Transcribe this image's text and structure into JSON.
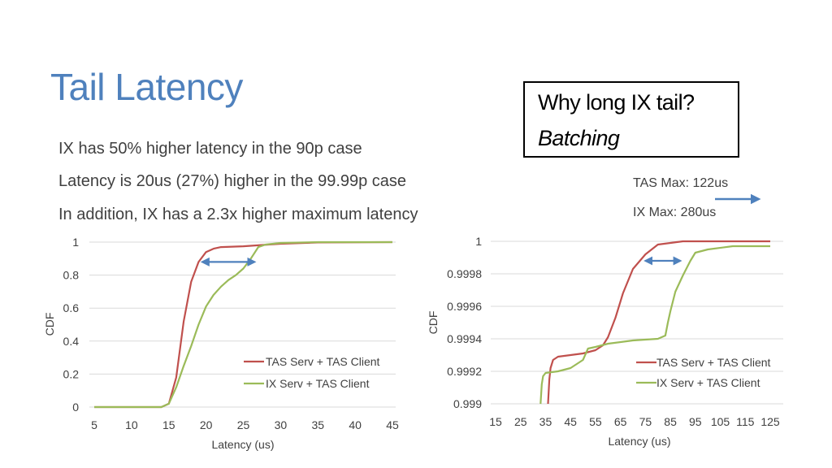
{
  "slide": {
    "title": "Tail Latency",
    "bullets": [
      "IX has 50% higher latency in the 90p case",
      "Latency is 20us (27%) higher in the 99.99p case",
      "In addition, IX has a 2.3x higher maximum latency"
    ],
    "callout": {
      "question": "Why long IX tail?",
      "answer": "Batching"
    },
    "notes": {
      "tas_max": "TAS Max: 122us",
      "ix_max": "IX Max: 280us"
    }
  },
  "colors": {
    "tas": "#c0504d",
    "ix": "#9bbb59",
    "arrow": "#4f81bd",
    "title": "#4f81bd",
    "grid": "#d9d9d9"
  },
  "chart_data": [
    {
      "type": "line",
      "title": "",
      "xlabel": "Latency (us)",
      "ylabel": "CDF",
      "xlim": [
        5,
        45
      ],
      "ylim": [
        0,
        1
      ],
      "xticks": [
        5,
        10,
        15,
        20,
        25,
        30,
        35,
        40,
        45
      ],
      "yticks": [
        0,
        0.2,
        0.4,
        0.6,
        0.8,
        1
      ],
      "ytick_labels": [
        "0",
        "0.2",
        "0.4",
        "0.6",
        "0.8",
        "1"
      ],
      "grid": true,
      "legend": "bottom-right",
      "series": [
        {
          "name": "TAS Serv + TAS Client",
          "color": "#c0504d",
          "x": [
            5,
            14,
            15,
            16,
            17,
            18,
            19,
            20,
            21,
            22,
            25,
            30,
            35,
            45
          ],
          "y": [
            0,
            0,
            0.02,
            0.18,
            0.52,
            0.76,
            0.88,
            0.94,
            0.96,
            0.97,
            0.975,
            0.99,
            0.998,
            1
          ]
        },
        {
          "name": "IX Serv + TAS Client",
          "color": "#9bbb59",
          "x": [
            5,
            14,
            15,
            16,
            17,
            18,
            19,
            20,
            21,
            22,
            23,
            24,
            25,
            26,
            27,
            28,
            29,
            30,
            35,
            45
          ],
          "y": [
            0,
            0,
            0.02,
            0.12,
            0.25,
            0.37,
            0.5,
            0.61,
            0.68,
            0.73,
            0.77,
            0.8,
            0.84,
            0.9,
            0.97,
            0.985,
            0.99,
            0.995,
            1,
            1
          ]
        }
      ],
      "annotations": [
        {
          "type": "double-arrow",
          "y": 0.88,
          "x_from": 19.5,
          "x_to": 26.5
        }
      ]
    },
    {
      "type": "line",
      "title": "",
      "xlabel": "Latency (us)",
      "ylabel": "CDF",
      "xlim": [
        15,
        125
      ],
      "ylim": [
        0.999,
        1
      ],
      "xticks": [
        15,
        25,
        35,
        45,
        55,
        65,
        75,
        85,
        95,
        105,
        115,
        125
      ],
      "yticks": [
        0.999,
        0.9992,
        0.9994,
        0.9996,
        0.9998,
        1
      ],
      "ytick_labels": [
        "0.999",
        "0.9992",
        "0.9994",
        "0.9996",
        "0.9998",
        "1"
      ],
      "grid": true,
      "legend": "bottom-right",
      "series": [
        {
          "name": "TAS Serv + TAS Client",
          "color": "#c0504d",
          "x": [
            36,
            36.5,
            37,
            38,
            40,
            45,
            50,
            55,
            58,
            60,
            63,
            66,
            70,
            75,
            80,
            85,
            90,
            100,
            125
          ],
          "y": [
            0.999,
            0.99915,
            0.99922,
            0.99927,
            0.99929,
            0.9993,
            0.99931,
            0.99933,
            0.99936,
            0.99941,
            0.99953,
            0.99968,
            0.99983,
            0.99992,
            0.99998,
            0.99999,
            1,
            1,
            1
          ]
        },
        {
          "name": "IX Serv + TAS Client",
          "color": "#9bbb59",
          "x": [
            33,
            33.5,
            34,
            35,
            40,
            45,
            48,
            50,
            52,
            55,
            60,
            70,
            80,
            83,
            84,
            85,
            87,
            90,
            93,
            95,
            100,
            110,
            125
          ],
          "y": [
            0.999,
            0.99912,
            0.99917,
            0.99919,
            0.9992,
            0.99922,
            0.99925,
            0.99927,
            0.99934,
            0.99935,
            0.99937,
            0.99939,
            0.9994,
            0.99942,
            0.9995,
            0.99957,
            0.99969,
            0.99979,
            0.99988,
            0.99993,
            0.99995,
            0.99997,
            0.99997
          ]
        }
      ],
      "annotations": [
        {
          "type": "double-arrow",
          "y": 0.99988,
          "x_from": 75,
          "x_to": 89
        }
      ]
    }
  ]
}
